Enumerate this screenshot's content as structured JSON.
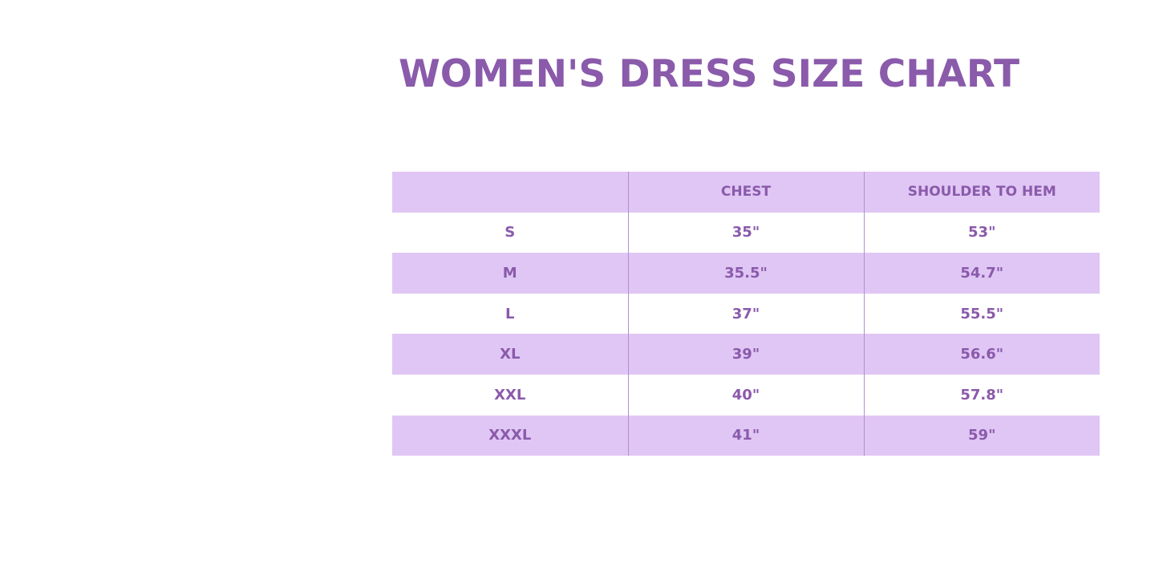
{
  "title": "WOMEN'S DRESS SIZE CHART",
  "colors": {
    "text": "#8a5aab",
    "band": "#e0c6f4",
    "divider": "#b48fd0"
  },
  "table": {
    "headers": [
      "",
      "CHEST",
      "SHOULDER TO HEM"
    ],
    "rows": [
      [
        "S",
        "35\"",
        "53\""
      ],
      [
        "M",
        "35.5\"",
        "54.7\""
      ],
      [
        "L",
        "37\"",
        "55.5\""
      ],
      [
        "XL",
        "39\"",
        "56.6\""
      ],
      [
        "XXL",
        "40\"",
        "57.8\""
      ],
      [
        "XXXL",
        "41\"",
        "59\""
      ]
    ]
  }
}
